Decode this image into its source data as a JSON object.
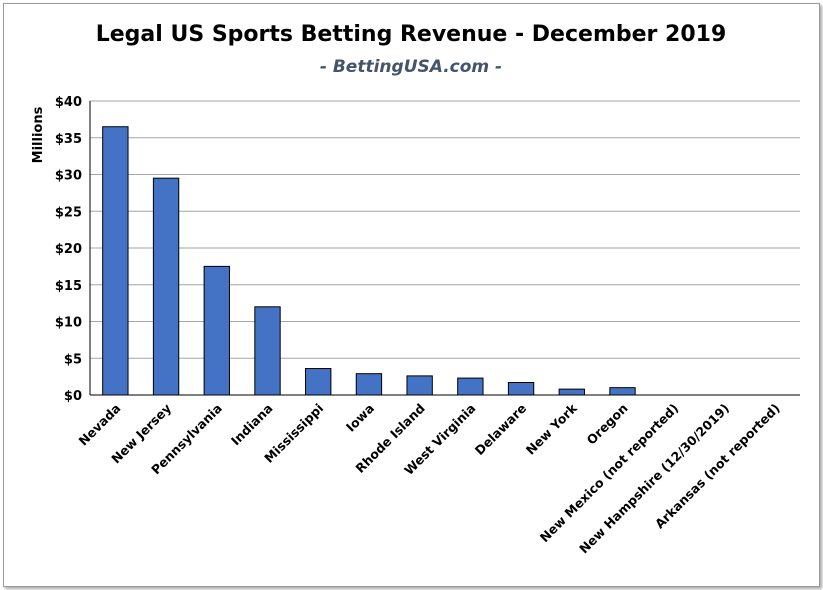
{
  "chart_data": {
    "type": "bar",
    "title": "Legal US Sports Betting Revenue - December 2019",
    "subtitle": "- BettingUSA.com -",
    "xlabel": "",
    "ylabel": "Millions",
    "ylim": [
      0,
      40
    ],
    "yticks": [
      0,
      5,
      10,
      15,
      20,
      25,
      30,
      35,
      40
    ],
    "ytick_labels": [
      "$0",
      "$5",
      "$10",
      "$15",
      "$20",
      "$25",
      "$30",
      "$35",
      "$40"
    ],
    "grid": true,
    "legend": "none",
    "bar_color": "#4472c4",
    "categories": [
      "Nevada",
      "New Jersey",
      "Pennsylvania",
      "Indiana",
      "Mississippi",
      "Iowa",
      "Rhode Island",
      "West Virginia",
      "Delaware",
      "New York",
      "Oregon",
      "New Mexico (not reported)",
      "New Hampshire (12/30/2019)",
      "Arkansas (not reported)"
    ],
    "values": [
      36.5,
      29.5,
      17.5,
      12.0,
      3.6,
      2.9,
      2.6,
      2.3,
      1.7,
      0.8,
      1.0,
      0,
      0,
      0
    ]
  }
}
